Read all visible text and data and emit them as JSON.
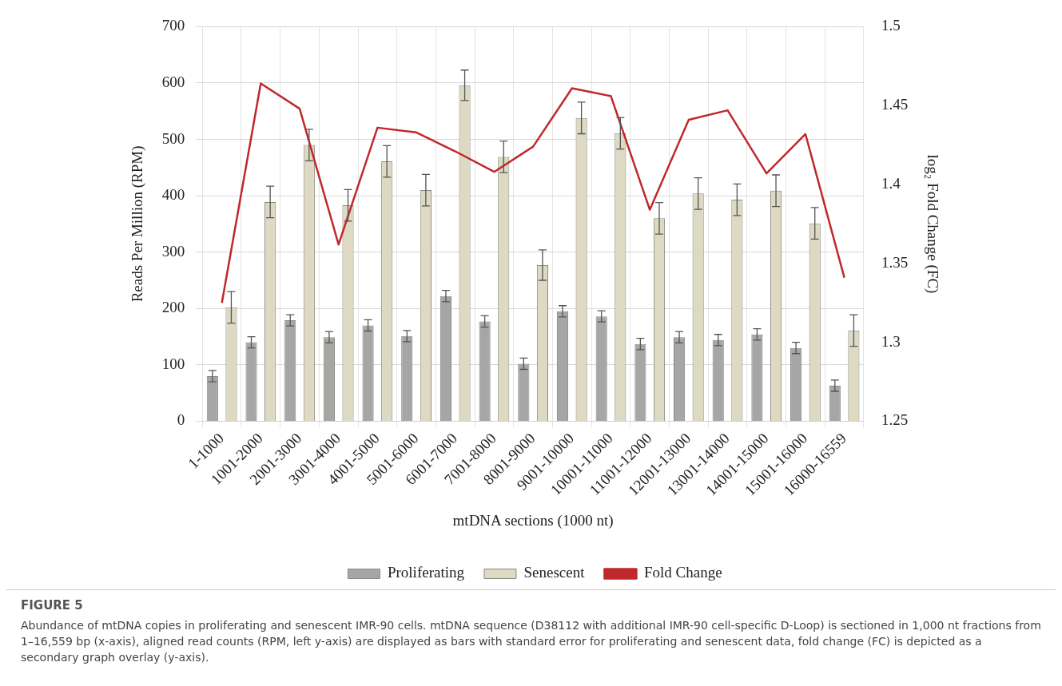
{
  "chart_data": {
    "type": "bar",
    "title": "FIGURE 5",
    "xlabel": "mtDNA sections (1000 nt)",
    "ylabel": "Reads Per Million (RPM)",
    "y2label": "log₂ Fold Change (FC)",
    "categories": [
      "1-1000",
      "1001-2000",
      "2001-3000",
      "3001-4000",
      "4001-5000",
      "5001-6000",
      "6001-7000",
      "7001-8000",
      "8001-9000",
      "9001-10000",
      "10001-11000",
      "11001-12000",
      "12001-13000",
      "13001-14000",
      "14001-15000",
      "15001-16000",
      "16000-16559"
    ],
    "series": [
      {
        "name": "Proliferating",
        "color": "#a6a6a6",
        "values": [
          80,
          140,
          179,
          149,
          170,
          151,
          222,
          177,
          102,
          195,
          186,
          137,
          149,
          144,
          154,
          130,
          63
        ],
        "errors": [
          10,
          10,
          10,
          10,
          10,
          10,
          10,
          10,
          10,
          10,
          10,
          10,
          10,
          10,
          10,
          10,
          10
        ]
      },
      {
        "name": "Senescent",
        "color": "#ddd9c3",
        "values": [
          202,
          389,
          490,
          383,
          461,
          410,
          596,
          469,
          277,
          538,
          511,
          360,
          404,
          393,
          409,
          351,
          161
        ],
        "errors": [
          28,
          28,
          28,
          28,
          28,
          28,
          27,
          28,
          27,
          28,
          28,
          28,
          28,
          28,
          28,
          28,
          28
        ]
      },
      {
        "name": "Fold Change",
        "type": "line",
        "axis": "y2",
        "color": "#c0282b",
        "values": [
          1.325,
          1.464,
          1.448,
          1.362,
          1.436,
          1.433,
          1.421,
          1.408,
          1.424,
          1.461,
          1.456,
          1.384,
          1.441,
          1.447,
          1.407,
          1.432,
          1.341
        ]
      }
    ],
    "ylim": [
      0,
      700
    ],
    "yticks": [
      0,
      100,
      200,
      300,
      400,
      500,
      600,
      700
    ],
    "y2lim": [
      1.25,
      1.5
    ],
    "y2ticks": [
      1.25,
      1.3,
      1.35,
      1.4,
      1.45,
      1.5
    ],
    "grid": true,
    "legend": "bottom",
    "marker": "none",
    "annotations": [
      "Abundance of mtDNA copies in proliferating and senescent IMR-90 cells. mtDNA sequence (D38112 with additional IMR-90 cell-specific D-Loop) is sectioned in 1,000 nt fractions from 1–16,559 bp (x-axis), aligned read counts (RPM, left y-axis) are displayed as bars with standard error for proliferating and senescent data, fold change (FC) is depicted as a secondary graph overlay (y-axis)."
    ]
  }
}
